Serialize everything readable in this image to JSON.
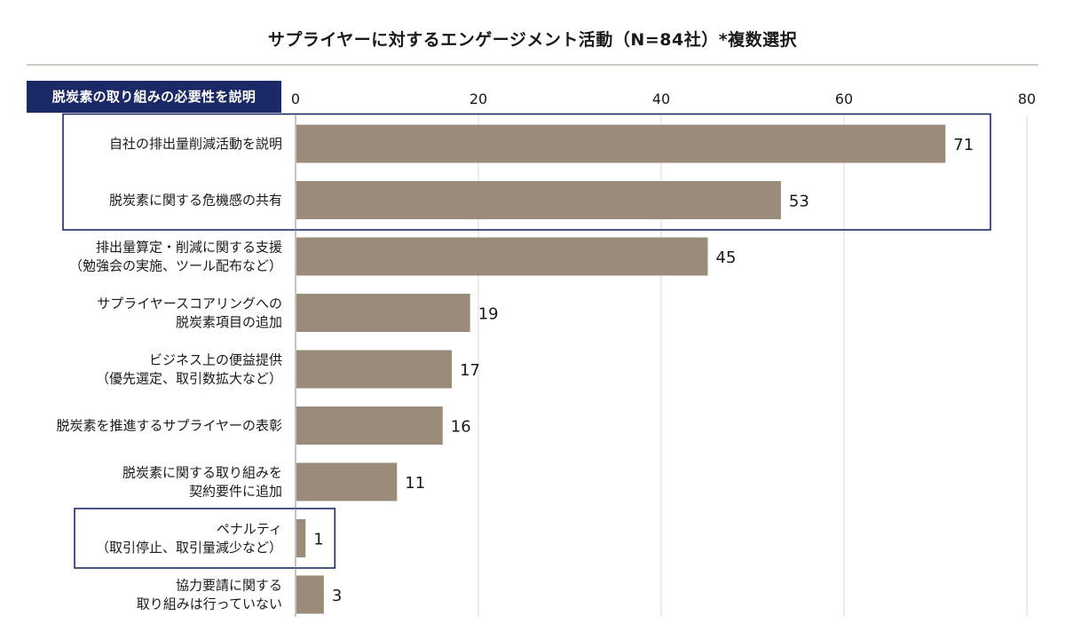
{
  "header": {
    "title": "サプライヤーに対するエンゲージメント活動（N=84社）*複数選択",
    "section_badge": "脱炭素の取り組みの必要性を説明"
  },
  "colors": {
    "bar": "#9a8b7b",
    "highlight_box": "#1b2a66",
    "gridline": "#dcd8d3",
    "badge_bg": "#1b2a66"
  },
  "chart_data": {
    "type": "bar",
    "orientation": "horizontal",
    "title": "サプライヤーに対するエンゲージメント活動（N=84社）*複数選択",
    "xlim": [
      0,
      80
    ],
    "ticks": [
      0,
      20,
      40,
      60,
      80
    ],
    "grid": true,
    "categories": [
      [
        "自社の排出量削減活動を説明"
      ],
      [
        "脱炭素に関する危機感の共有"
      ],
      [
        "排出量算定・削減に関する支援",
        "（勉強会の実施、ツール配布など）"
      ],
      [
        "サプライヤースコアリングへの",
        "脱炭素項目の追加"
      ],
      [
        "ビジネス上の便益提供",
        "（優先選定、取引数拡大など）"
      ],
      [
        "脱炭素を推進するサプライヤーの表彰"
      ],
      [
        "脱炭素に関する取り組みを",
        "契約要件に追加"
      ],
      [
        "ペナルティ",
        "（取引停止、取引量減少など）"
      ],
      [
        "協力要請に関する",
        "取り組みは行っていない"
      ]
    ],
    "values": [
      71,
      53,
      45,
      19,
      17,
      16,
      11,
      1,
      3
    ],
    "highlight_groups": [
      {
        "indices": [
          0,
          1
        ],
        "caption": "脱炭素の取り組みの必要性を説明"
      },
      {
        "indices": [
          7
        ]
      }
    ]
  }
}
